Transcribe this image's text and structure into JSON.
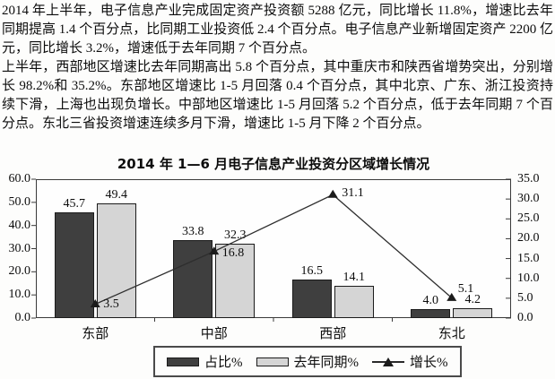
{
  "document": {
    "paragraphs": [
      "2014 年上半年，电子信息产业完成固定资产投资额 5288 亿元，同比增长 11.8%，增速比去年同期提高 1.4 个百分点，比同期工业投资低 2.4 个百分点。电子信息产业新增固定资产 2200 亿元，同比增长 3.2%，增速低于去年同期 7 个百分点。",
      "上半年，西部地区增速比去年同期高出 5.8 个百分点，其中重庆市和陕西省增势突出，分别增长 98.2%和 35.2%。东部地区增速比 1-5 月回落 0.4 个百分点，其中北京、广东、浙江投资持续下滑，上海也出现负增长。中部地区增速比 1-5 月回落 5.2 个百分点，低于去年同期 7 个百分点。东北三省投资增速连续多月下滑，增速比 1-5 月下降 2 个百分点。"
    ]
  },
  "chart_data": {
    "type": "bar",
    "subtype": "grouped-bars-with-line",
    "title": "2014 年 1—6 月电子信息产业投资分区域增长情况",
    "categories": [
      "东部",
      "中部",
      "西部",
      "东北"
    ],
    "series": [
      {
        "name": "占比%",
        "type": "bar",
        "axis": "left",
        "values": [
          45.7,
          33.8,
          16.5,
          4.0
        ]
      },
      {
        "name": "去年同期%",
        "type": "bar",
        "axis": "left",
        "values": [
          49.4,
          32.3,
          14.1,
          4.2
        ]
      },
      {
        "name": "增长%",
        "type": "line",
        "axis": "right",
        "values": [
          3.5,
          16.8,
          31.1,
          5.1
        ]
      }
    ],
    "left_axis": {
      "min": 0,
      "max": 60,
      "step": 10,
      "ticks": [
        "60.0",
        "50.0",
        "40.0",
        "30.0",
        "20.0",
        "10.0",
        "0.0"
      ]
    },
    "right_axis": {
      "min": 0,
      "max": 35,
      "step": 5,
      "ticks": [
        "35.0",
        "30.0",
        "25.0",
        "20.0",
        "15.0",
        "10.0",
        "5.0",
        "0.0"
      ]
    },
    "legend": [
      {
        "label": "占比%",
        "marker": "dark-bar-swatch-icon"
      },
      {
        "label": "去年同期%",
        "marker": "light-bar-swatch-icon"
      },
      {
        "label": "增长%",
        "marker": "triangle-line-marker-icon"
      }
    ],
    "legend_position": "bottom",
    "grid": false,
    "colors": {
      "bar_dark": "#3f3f3f",
      "bar_light": "#d5d5d5",
      "line": "#2e2e2e",
      "marker": "#1b1b1b"
    }
  }
}
